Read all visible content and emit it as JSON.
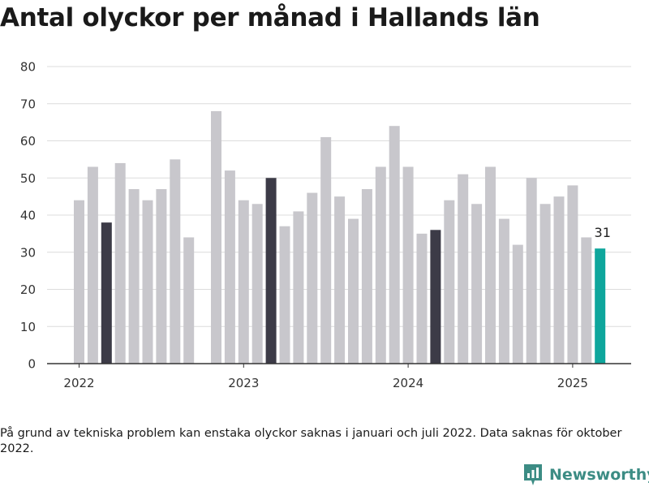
{
  "title": "Antal olyckor per månad i Hallands län",
  "footnote": "På grund av tekniska problem kan enstaka olyckor saknas i januari och juli 2022. Data saknas för oktober 2022.",
  "brand": {
    "name": "Newsworthy"
  },
  "colors": {
    "default": "#c8c7cc",
    "march": "#3c3b47",
    "latest": "#0ea69c",
    "grid": "#dcdcdc",
    "axis": "#333333"
  },
  "chart_data": {
    "type": "bar",
    "title": "Antal olyckor per månad i Hallands län",
    "xlabel": "",
    "ylabel": "",
    "ylim": [
      0,
      80
    ],
    "yticks": [
      0,
      10,
      20,
      30,
      40,
      50,
      60,
      70,
      80
    ],
    "grid": true,
    "legend": "none",
    "xtick_labels": [
      "2022",
      "2023",
      "2024",
      "2025"
    ],
    "categories": [
      "2022-01",
      "2022-02",
      "2022-03",
      "2022-04",
      "2022-05",
      "2022-06",
      "2022-07",
      "2022-08",
      "2022-09",
      "2022-10",
      "2022-11",
      "2022-12",
      "2023-01",
      "2023-02",
      "2023-03",
      "2023-04",
      "2023-05",
      "2023-06",
      "2023-07",
      "2023-08",
      "2023-09",
      "2023-10",
      "2023-11",
      "2023-12",
      "2024-01",
      "2024-02",
      "2024-03",
      "2024-04",
      "2024-05",
      "2024-06",
      "2024-07",
      "2024-08",
      "2024-09",
      "2024-10",
      "2024-11",
      "2024-12",
      "2025-01",
      "2025-02",
      "2025-03"
    ],
    "values": [
      44,
      53,
      38,
      54,
      47,
      44,
      47,
      55,
      34,
      null,
      68,
      52,
      44,
      43,
      50,
      37,
      41,
      46,
      61,
      45,
      39,
      47,
      53,
      64,
      53,
      35,
      36,
      44,
      51,
      43,
      53,
      39,
      32,
      50,
      43,
      45,
      48,
      34,
      31
    ],
    "highlight": {
      "march": [
        "2022-03",
        "2023-03",
        "2024-03"
      ],
      "latest": "2025-03"
    },
    "annotations": [
      {
        "category": "2025-03",
        "text": "31"
      }
    ]
  }
}
